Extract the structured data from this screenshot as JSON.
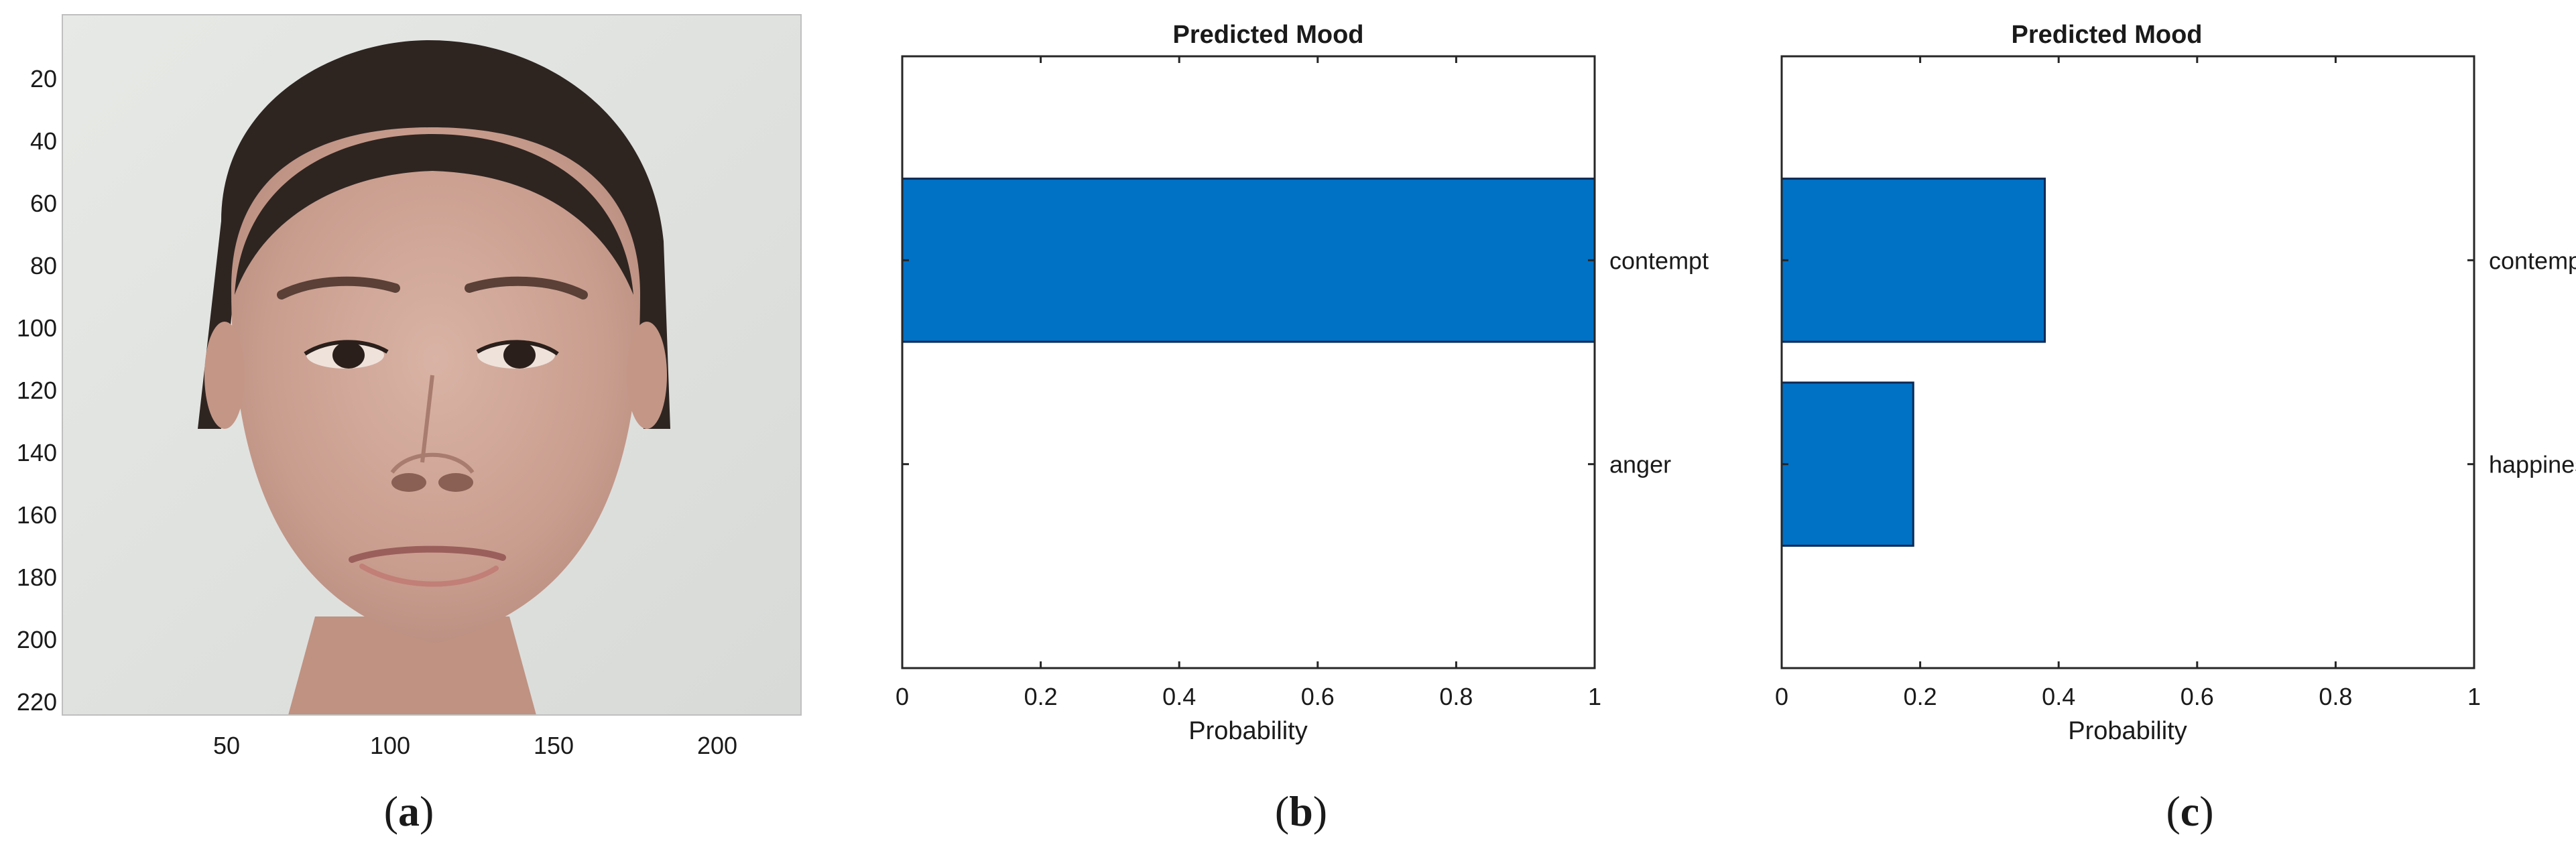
{
  "chart_data": [
    {
      "panel": "a",
      "type": "image",
      "y_ticks": [
        "20",
        "40",
        "60",
        "80",
        "100",
        "120",
        "140",
        "160",
        "180",
        "200",
        "220"
      ],
      "x_ticks": [
        "50",
        "100",
        "150",
        "200"
      ]
    },
    {
      "panel": "b",
      "type": "bar",
      "orientation": "horizontal",
      "title": "Predicted Mood",
      "xlabel": "Probability",
      "xlim": [
        0,
        1
      ],
      "x_ticks": [
        "0",
        "0.2",
        "0.4",
        "0.6",
        "0.8",
        "1"
      ],
      "categories": [
        "anger",
        "contempt"
      ],
      "values": [
        0,
        1.0
      ],
      "bar_color": "#0072C6"
    },
    {
      "panel": "c",
      "type": "bar",
      "orientation": "horizontal",
      "title": "Predicted Mood",
      "xlabel": "Probability",
      "xlim": [
        0,
        1
      ],
      "x_ticks": [
        "0",
        "0.2",
        "0.4",
        "0.6",
        "0.8",
        "1"
      ],
      "categories": [
        "happiness",
        "contempt"
      ],
      "values": [
        0.19,
        0.38
      ],
      "bar_color": "#0072C6"
    }
  ],
  "panel_labels": {
    "a_open": "(",
    "a": "a",
    "a_close": ")",
    "b_open": "(",
    "b": "b",
    "b_close": ")",
    "c_open": "(",
    "c": "c",
    "c_close": ")"
  }
}
